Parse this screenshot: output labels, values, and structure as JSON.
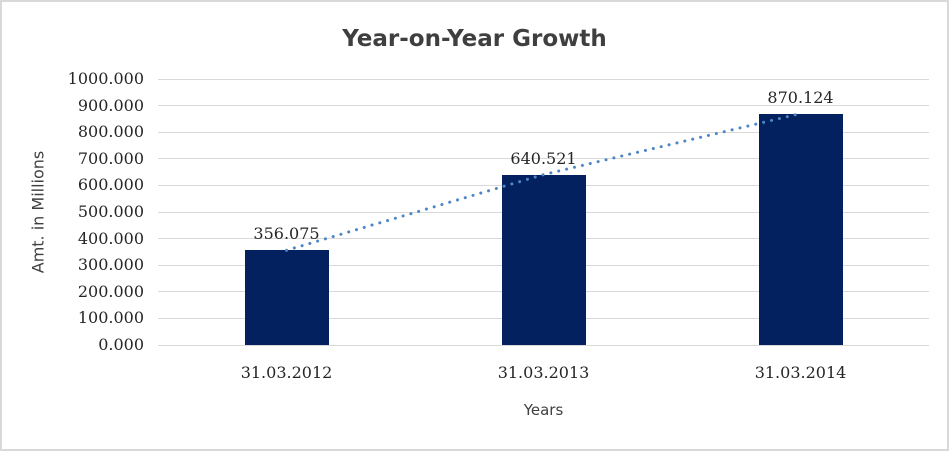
{
  "window": {
    "background_color": "#ffffff",
    "border_color": "#d9d9d9"
  },
  "chart_data": {
    "type": "bar",
    "title": "Year-on-Year Growth",
    "xlabel": "Years",
    "ylabel": "Amt. in Millions",
    "categories": [
      "31.03.2012",
      "31.03.2013",
      "31.03.2014"
    ],
    "series": [
      {
        "name": "amount",
        "type": "bar",
        "values": [
          356.075,
          640.521,
          870.124
        ],
        "data_labels": [
          "356.075",
          "640.521",
          "870.124"
        ],
        "color": "#03215e"
      },
      {
        "name": "trendline",
        "type": "line",
        "line_style": "dotted",
        "values": [
          356.075,
          640.521,
          870.124
        ],
        "color": "#4d86c6"
      }
    ],
    "ylim": [
      0,
      1000
    ],
    "ytick_step": 100,
    "ytick_labels": [
      "0.000",
      "100.000",
      "200.000",
      "300.000",
      "400.000",
      "500.000",
      "600.000",
      "700.000",
      "800.000",
      "900.000",
      "1000.000"
    ],
    "grid": "horizontal",
    "gridline_color": "#d9d9d9",
    "legend": "none",
    "title_color": "#3f3f3f",
    "axis_title_color": "#3f3f3f",
    "tick_text_color": "#262626"
  }
}
